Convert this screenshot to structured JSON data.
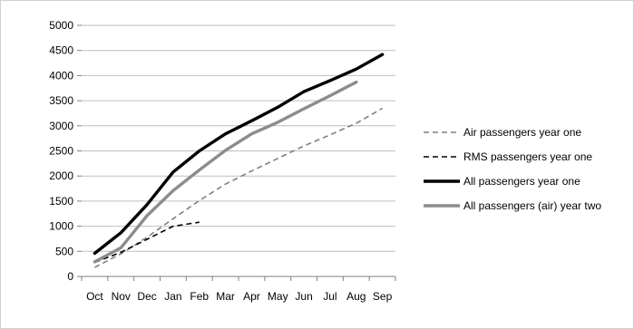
{
  "chart_data": {
    "type": "line",
    "title": "",
    "xlabel": "",
    "ylabel": "",
    "categories": [
      "Oct",
      "Nov",
      "Dec",
      "Jan",
      "Feb",
      "Mar",
      "Apr",
      "May",
      "Jun",
      "Jul",
      "Aug",
      "Sep"
    ],
    "ylim": [
      0,
      5000
    ],
    "yticks": [
      0,
      500,
      1000,
      1500,
      2000,
      2500,
      3000,
      3500,
      4000,
      4500,
      5000
    ],
    "grid": "horizontal",
    "legend_position": "right",
    "series": [
      {
        "name": "Air passengers year one",
        "color": "#808080",
        "style": "dashed",
        "values": [
          180,
          450,
          780,
          1150,
          1510,
          1840,
          2100,
          2350,
          2600,
          2820,
          3050,
          3350
        ]
      },
      {
        "name": "RMS passengers year one",
        "color": "#000000",
        "style": "dashed",
        "values": [
          280,
          480,
          740,
          1000,
          1080,
          null,
          null,
          null,
          null,
          null,
          null,
          null
        ]
      },
      {
        "name": "All passengers year one",
        "color": "#000000",
        "style": "solid-thick",
        "values": [
          460,
          870,
          1430,
          2080,
          2500,
          2840,
          3100,
          3370,
          3680,
          3900,
          4130,
          4420
        ]
      },
      {
        "name": "All passengers (air) year two",
        "color": "#8c8c8c",
        "style": "solid-thick",
        "values": [
          290,
          570,
          1210,
          1710,
          2120,
          2510,
          2840,
          3070,
          3340,
          3600,
          3870,
          null
        ]
      }
    ]
  }
}
